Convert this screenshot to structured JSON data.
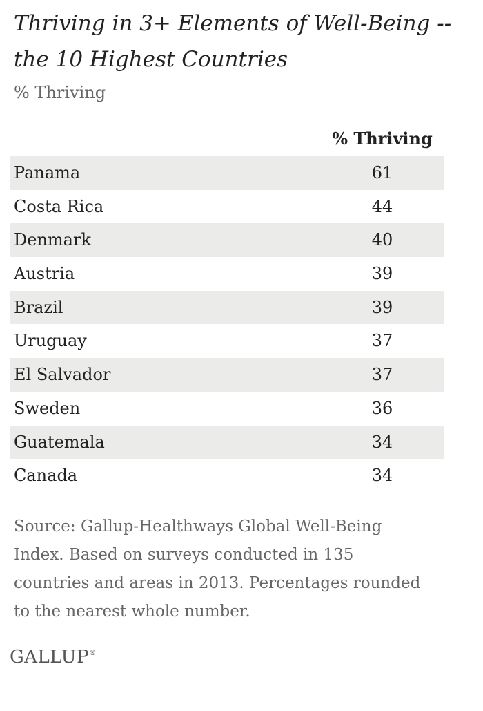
{
  "chart_data": {
    "type": "table",
    "title": "Thriving in 3+ Elements of Well-Being -- the 10 Highest Countries",
    "subtitle": "% Thriving",
    "column_header": "% Thriving",
    "categories": [
      "Panama",
      "Costa Rica",
      "Denmark",
      "Austria",
      "Brazil",
      "Uruguay",
      "El Salvador",
      "Sweden",
      "Guatemala",
      "Canada"
    ],
    "values": [
      61,
      44,
      40,
      39,
      39,
      37,
      37,
      36,
      34,
      34
    ],
    "source": "Source: Gallup-Healthways Global Well-Being Index. Based on surveys conducted in 135 countries and areas in 2013. Percentages rounded to the nearest whole number."
  },
  "logo": {
    "text": "GALLUP",
    "mark": "®"
  },
  "colors": {
    "row_shade": "#ebebea",
    "text": "#222222",
    "muted_text": "#666666"
  }
}
